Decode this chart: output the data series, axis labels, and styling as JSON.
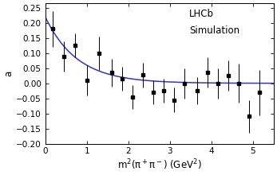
{
  "xlabel": "m$^2$(π$^+$π$^-$) (GeV$^2$)",
  "ylabel": "a",
  "xlim": [
    0,
    5.5
  ],
  "ylim": [
    -0.2,
    0.265
  ],
  "yticks": [
    -0.2,
    -0.15,
    -0.1,
    -0.05,
    0,
    0.05,
    0.1,
    0.15,
    0.2,
    0.25
  ],
  "xticks": [
    0,
    1,
    2,
    3,
    4,
    5
  ],
  "label_line1": "LHCb",
  "label_line2": "Simulation",
  "data_x": [
    0.18,
    0.45,
    0.72,
    1.0,
    1.3,
    1.6,
    1.85,
    2.1,
    2.35,
    2.6,
    2.85,
    3.1,
    3.35,
    3.65,
    3.9,
    4.15,
    4.4,
    4.65,
    4.9,
    5.15
  ],
  "data_y": [
    0.18,
    0.09,
    0.125,
    0.01,
    0.1,
    0.035,
    0.015,
    -0.045,
    0.027,
    -0.03,
    -0.025,
    -0.055,
    0.0,
    -0.025,
    0.035,
    0.0,
    0.025,
    0.0,
    -0.11,
    -0.03
  ],
  "data_yerr": [
    0.06,
    0.05,
    0.04,
    0.05,
    0.055,
    0.045,
    0.04,
    0.04,
    0.04,
    0.04,
    0.04,
    0.04,
    0.05,
    0.045,
    0.05,
    0.05,
    0.05,
    0.065,
    0.055,
    0.075
  ],
  "curve_A": 0.22,
  "curve_k": 1.3,
  "curve_color": "#3333cc",
  "marker_color": "black",
  "marker_size": 3.5,
  "figsize": [
    3.47,
    2.2
  ],
  "dpi": 100,
  "fontsize_label": 8.5,
  "fontsize_tick": 7.5,
  "fontsize_annotation": 8.5
}
